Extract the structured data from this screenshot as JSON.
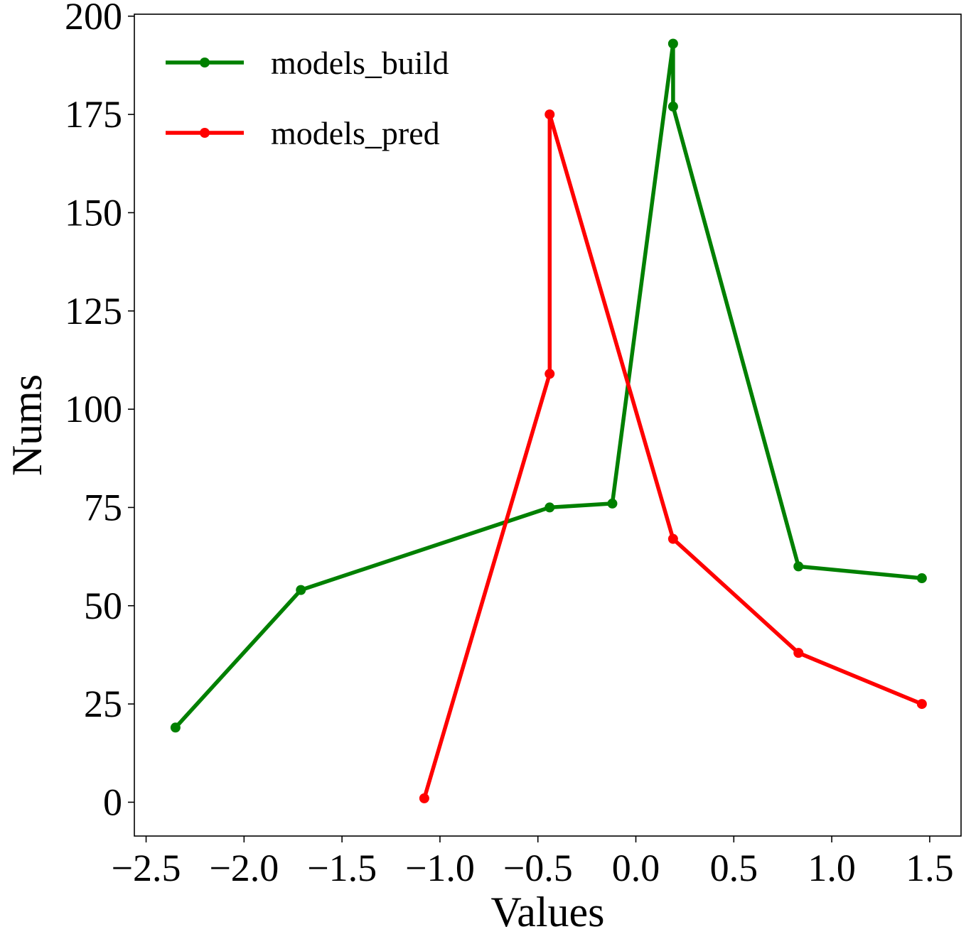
{
  "chart_data": {
    "type": "line",
    "title": "",
    "xlabel": "Values",
    "ylabel": "Nums",
    "xlim": [
      -2.56,
      1.66
    ],
    "ylim": [
      -8.6,
      200.5
    ],
    "x_ticks": [
      -2.5,
      -2.0,
      -1.5,
      -1.0,
      -0.5,
      0.0,
      0.5,
      1.0,
      1.5
    ],
    "x_tick_labels": [
      "−2.5",
      "−2.0",
      "−1.5",
      "−1.0",
      "−0.5",
      "0.0",
      "0.5",
      "1.0",
      "1.5"
    ],
    "y_ticks": [
      0,
      25,
      50,
      75,
      100,
      125,
      150,
      175,
      200
    ],
    "y_tick_labels": [
      "0",
      "25",
      "50",
      "75",
      "100",
      "125",
      "150",
      "175",
      "200"
    ],
    "grid": false,
    "legend_position": "top-left",
    "series": [
      {
        "name": "models_build",
        "color": "#008000",
        "marker": "circle",
        "x": [
          -2.35,
          -1.71,
          -0.44,
          -0.12,
          0.19,
          0.19,
          0.83,
          1.46
        ],
        "y": [
          19,
          54,
          75,
          76,
          193,
          177,
          60,
          57
        ]
      },
      {
        "name": "models_pred",
        "color": "#ff0000",
        "marker": "circle",
        "x": [
          -1.08,
          -0.44,
          -0.44,
          0.19,
          0.83,
          1.46
        ],
        "y": [
          1,
          109,
          175,
          67,
          38,
          25
        ]
      }
    ]
  }
}
